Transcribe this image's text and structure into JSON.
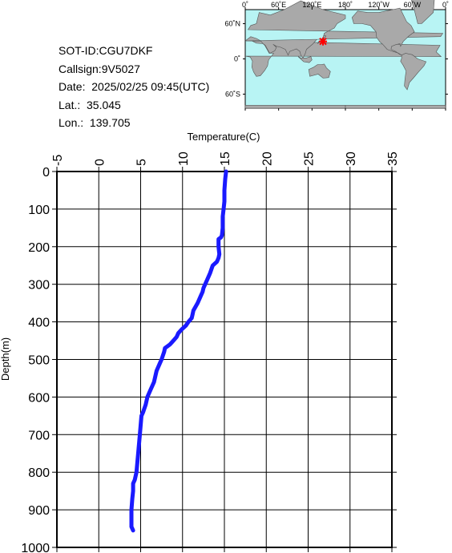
{
  "info": {
    "sot_id": "SOT-ID:CGU7DKF",
    "callsign": "Callsign:9V5027",
    "date": "Date:  2025/02/25 09:45(UTC)",
    "lat": "Lat.:  35.045",
    "lon": "Lon.:  139.705"
  },
  "map": {
    "top_labels": [
      "0˚",
      "60˚E",
      "120˚E",
      "180˚",
      "120˚W",
      "60˚W",
      "0˚"
    ],
    "side_labels": [
      "60˚N",
      "0˚",
      "60˚S"
    ],
    "ocean_color": "#b8f4f4",
    "land_color": "#a9a9a9",
    "marker_color": "#ff0000",
    "marker_lon": 139.705,
    "marker_lat": 35.045
  },
  "chart_data": {
    "type": "line",
    "xlabel": "Temperature(C)",
    "ylabel": "Depth(m)",
    "xlim": [
      -5,
      35
    ],
    "ylim": [
      1000,
      0
    ],
    "x_ticks": [
      "-5",
      "0",
      "5",
      "10",
      "15",
      "20",
      "25",
      "30",
      "35"
    ],
    "y_ticks": [
      "0",
      "100",
      "200",
      "300",
      "400",
      "500",
      "600",
      "700",
      "800",
      "900",
      "1000"
    ],
    "grid": true,
    "line_color": "#1a1aff",
    "series": [
      {
        "temperature": [
          15.2,
          15.1,
          15.0,
          15.0,
          14.9,
          14.8,
          14.8,
          14.7,
          14.6,
          14.3,
          14.3,
          14.4,
          14.3,
          14.1,
          13.6,
          13.3,
          12.9,
          12.7,
          12.5,
          12.4,
          12.2,
          11.8,
          11.3,
          11.2,
          11.1,
          10.7,
          10.4,
          9.9,
          9.5,
          9.3,
          8.9,
          8.7,
          8.5,
          7.9,
          7.8,
          7.5,
          7.3,
          6.9,
          6.6,
          6.2,
          5.8,
          5.6,
          5.3,
          5.1,
          4.9,
          4.7,
          4.5,
          4.3,
          4.1,
          4.1,
          4.0,
          3.9,
          3.9,
          4.1
        ],
        "depth": [
          0,
          20,
          50,
          80,
          100,
          120,
          150,
          170,
          175,
          180,
          200,
          220,
          230,
          240,
          250,
          270,
          290,
          300,
          310,
          320,
          330,
          350,
          370,
          380,
          390,
          400,
          410,
          420,
          430,
          440,
          450,
          455,
          460,
          470,
          480,
          500,
          510,
          530,
          560,
          580,
          600,
          620,
          640,
          650,
          700,
          750,
          800,
          820,
          830,
          850,
          870,
          900,
          945,
          955
        ]
      }
    ]
  }
}
